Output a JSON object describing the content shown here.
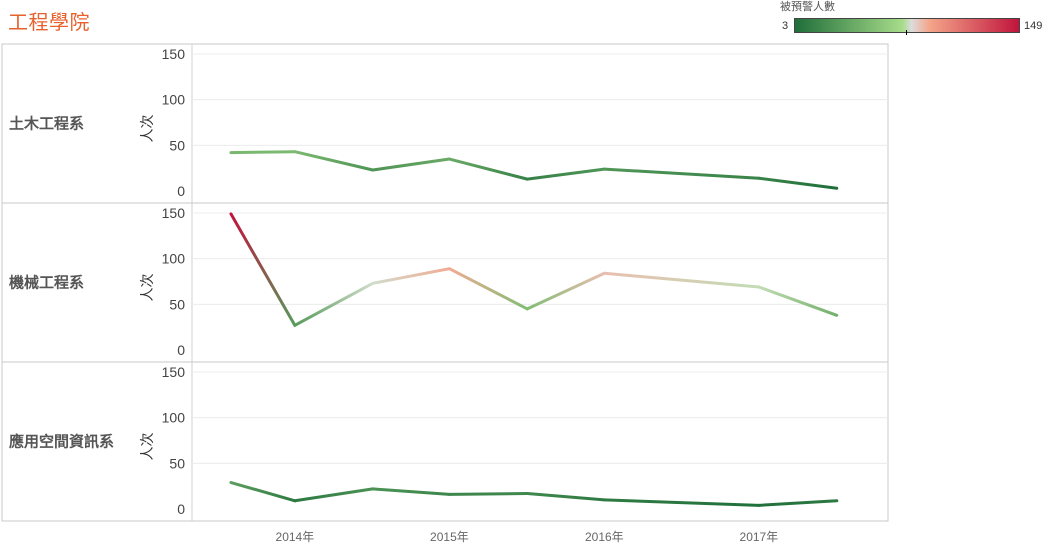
{
  "header": {
    "title": "工程學院"
  },
  "legend": {
    "title": "被預警人數",
    "min_label": "3",
    "max_label": "149",
    "min": 3,
    "max": 149,
    "center": 76,
    "colors": {
      "low": "#1f6e3a",
      "mid_low": "#a7dc8a",
      "mid": "#dcdcdc",
      "mid_high": "#f4a58a",
      "high": "#c0143c"
    }
  },
  "chart_data": {
    "type": "line",
    "x": [
      "2013-10",
      "2014-03",
      "2014-09",
      "2015-03",
      "2015-09",
      "2016-03",
      "2016-09",
      "2017-03",
      "2017-09"
    ],
    "x_tick_labels": [
      "2014年",
      "2015年",
      "2016年",
      "2017年"
    ],
    "x_ticks": [
      "2014-03",
      "2015-03",
      "2016-03",
      "2017-03"
    ],
    "ylabel": "人次",
    "ylim": [
      0,
      150
    ],
    "y_ticks": [
      0,
      50,
      100,
      150
    ],
    "grid": true,
    "panels": [
      {
        "name": "土木工程系",
        "values": [
          42,
          43,
          23,
          35,
          13,
          24,
          null,
          14,
          3
        ]
      },
      {
        "name": "機械工程系",
        "values": [
          149,
          27,
          73,
          89,
          45,
          84,
          null,
          69,
          38
        ]
      },
      {
        "name": "應用空間資訊系",
        "values": [
          29,
          9,
          22,
          16,
          17,
          10,
          null,
          4,
          9
        ]
      }
    ]
  }
}
